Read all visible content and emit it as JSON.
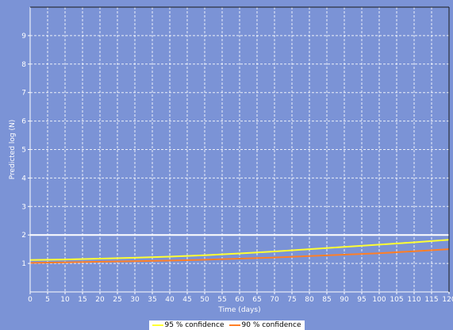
{
  "chart_data": {
    "type": "line",
    "xlabel": "Time (days)",
    "ylabel": "Predicted log (N)",
    "xlim": [
      0,
      120
    ],
    "ylim": [
      0,
      10
    ],
    "x_ticks": [
      0,
      5,
      10,
      15,
      20,
      25,
      30,
      35,
      40,
      45,
      50,
      55,
      60,
      65,
      70,
      75,
      80,
      85,
      90,
      95,
      100,
      105,
      110,
      115,
      120
    ],
    "y_ticks": [
      1,
      2,
      3,
      4,
      5,
      6,
      7,
      8,
      9
    ],
    "grid": true,
    "legend_position": "bottom-center",
    "reference_line": {
      "y": 2.0,
      "color": "#ffffff"
    },
    "series": [
      {
        "name": "95 % confidence",
        "color": "#ffff33",
        "x": [
          0,
          10,
          20,
          30,
          40,
          50,
          60,
          70,
          80,
          90,
          100,
          110,
          120
        ],
        "y": [
          1.12,
          1.14,
          1.17,
          1.2,
          1.24,
          1.29,
          1.35,
          1.42,
          1.5,
          1.58,
          1.66,
          1.74,
          1.83
        ]
      },
      {
        "name": "90 % confidence",
        "color": "#ff7f27",
        "x": [
          0,
          10,
          20,
          30,
          40,
          50,
          60,
          70,
          80,
          90,
          100,
          110,
          120
        ],
        "y": [
          1.02,
          1.04,
          1.06,
          1.08,
          1.1,
          1.13,
          1.17,
          1.21,
          1.26,
          1.31,
          1.36,
          1.43,
          1.5
        ]
      }
    ]
  }
}
